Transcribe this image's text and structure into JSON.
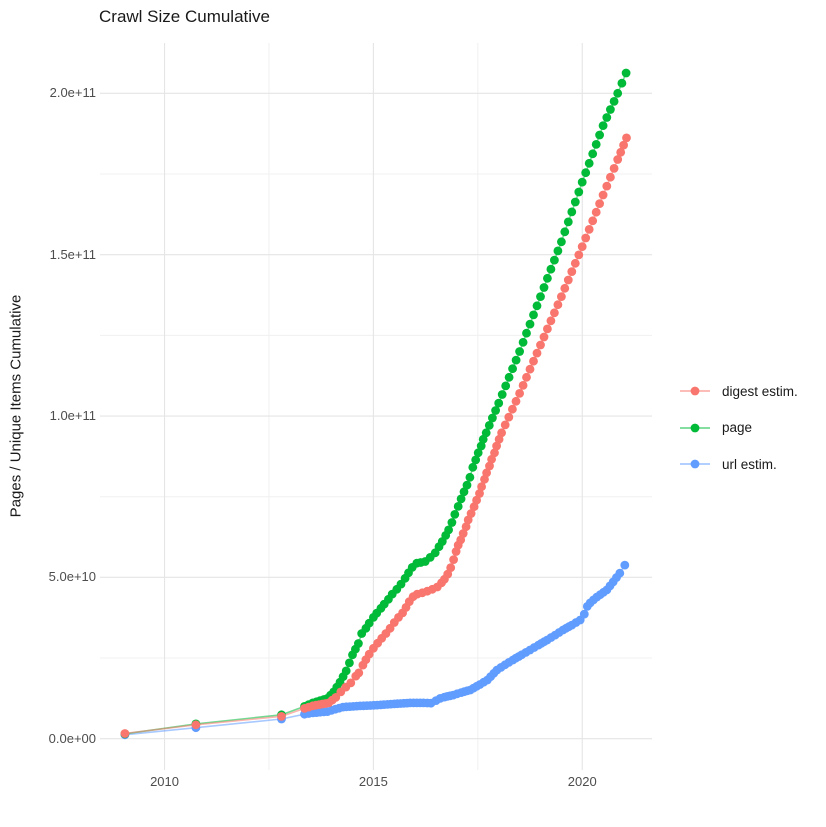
{
  "chart_data": {
    "type": "line",
    "title": "Crawl Size Cumulative",
    "ylabel": "Pages / Unique Items Cumulative",
    "xlabel": "",
    "value_unit": "1e9 (values below are billions of pages / unique items)",
    "x_ticks": [
      {
        "v": 2010,
        "label": "2010"
      },
      {
        "v": 2015,
        "label": "2015"
      },
      {
        "v": 2020,
        "label": "2020"
      }
    ],
    "y_ticks": [
      {
        "v": 0,
        "label": "0.0e+00"
      },
      {
        "v": 50,
        "label": "5.0e+10"
      },
      {
        "v": 100,
        "label": "1.0e+11"
      },
      {
        "v": 150,
        "label": "1.5e+11"
      },
      {
        "v": 200,
        "label": "2.0e+11"
      }
    ],
    "x_minor": [
      2012.5,
      2017.5
    ],
    "y_minor": [
      25,
      75,
      125,
      175
    ],
    "xlim": [
      2008.455,
      2021.67
    ],
    "ylim": [
      -9.7,
      215.6
    ],
    "grid": true,
    "legend_position": "right",
    "grid_major_color": "#e5e5e5",
    "grid_minor_color": "#f0f0f0",
    "dot_spacing_years": 0.08333,
    "interpolate_from_year": 2013.3,
    "line_opacity": 0.55,
    "dot_radius": 4.4,
    "series": [
      {
        "name": "digest estim.",
        "color": "#F8766D",
        "points": [
          [
            2009.05,
            1.6
          ],
          [
            2010.75,
            4.3
          ],
          [
            2012.8,
            6.9
          ],
          [
            2013.35,
            9.4
          ],
          [
            2013.55,
            10.2
          ],
          [
            2013.93,
            11.1
          ],
          [
            2014.1,
            12.8
          ],
          [
            2014.22,
            14.5
          ],
          [
            2014.34,
            16
          ],
          [
            2014.46,
            17.3
          ],
          [
            2014.58,
            19.4
          ],
          [
            2014.65,
            20.4
          ],
          [
            2014.75,
            22.8
          ],
          [
            2014.82,
            24.5
          ],
          [
            2014.9,
            26.2
          ],
          [
            2015,
            28
          ],
          [
            2015.1,
            29.6
          ],
          [
            2015.2,
            31.1
          ],
          [
            2015.3,
            32.6
          ],
          [
            2015.4,
            34.2
          ],
          [
            2015.5,
            36
          ],
          [
            2015.6,
            37.6
          ],
          [
            2015.7,
            39
          ],
          [
            2015.78,
            40.7
          ],
          [
            2015.86,
            42.5
          ],
          [
            2015.95,
            44
          ],
          [
            2016.05,
            44.8
          ],
          [
            2016.17,
            45.2
          ],
          [
            2016.29,
            45.7
          ],
          [
            2016.41,
            46.3
          ],
          [
            2016.53,
            47
          ],
          [
            2016.63,
            48.3
          ],
          [
            2016.7,
            49.4
          ],
          [
            2016.78,
            51
          ],
          [
            2016.85,
            53
          ],
          [
            2016.92,
            55.5
          ],
          [
            2016.98,
            58
          ],
          [
            2017.03,
            60
          ],
          [
            2017.09,
            61.6
          ],
          [
            2017.15,
            63.6
          ],
          [
            2017.22,
            65.7
          ],
          [
            2017.27,
            67.8
          ],
          [
            2017.34,
            69.8
          ],
          [
            2017.41,
            71.9
          ],
          [
            2017.47,
            73.9
          ],
          [
            2017.54,
            76
          ],
          [
            2017.59,
            78.1
          ],
          [
            2017.66,
            80.4
          ],
          [
            2017.71,
            82.4
          ],
          [
            2017.78,
            84.5
          ],
          [
            2017.83,
            86.6
          ],
          [
            2017.9,
            88.6
          ],
          [
            2017.95,
            90.7
          ],
          [
            2018.01,
            92.8
          ],
          [
            2018.07,
            94.8
          ],
          [
            2018.5,
            107
          ],
          [
            2019,
            122
          ],
          [
            2019.5,
            137
          ],
          [
            2020,
            152.5
          ],
          [
            2020.5,
            168.5
          ],
          [
            2020.85,
            179.5
          ],
          [
            2021.06,
            186.2
          ]
        ]
      },
      {
        "name": "page",
        "color": "#00BA38",
        "points": [
          [
            2009.05,
            1.5
          ],
          [
            2010.75,
            4.6
          ],
          [
            2012.8,
            7.4
          ],
          [
            2013.35,
            10
          ],
          [
            2013.55,
            11.1
          ],
          [
            2013.9,
            12.5
          ],
          [
            2014.05,
            14.5
          ],
          [
            2014.2,
            17.5
          ],
          [
            2014.35,
            21
          ],
          [
            2014.5,
            26
          ],
          [
            2014.64,
            29.5
          ],
          [
            2014.72,
            32.6
          ],
          [
            2014.82,
            34.2
          ],
          [
            2014.9,
            35.8
          ],
          [
            2015,
            37.6
          ],
          [
            2015.08,
            38.9
          ],
          [
            2015.18,
            40.4
          ],
          [
            2015.26,
            41.7
          ],
          [
            2015.36,
            43.2
          ],
          [
            2015.45,
            44.8
          ],
          [
            2015.56,
            46.3
          ],
          [
            2015.66,
            47.9
          ],
          [
            2015.76,
            49.7
          ],
          [
            2015.84,
            51.4
          ],
          [
            2015.93,
            53.1
          ],
          [
            2016.04,
            54.4
          ],
          [
            2016.13,
            54.6
          ],
          [
            2016.24,
            54.9
          ],
          [
            2016.36,
            56.2
          ],
          [
            2016.48,
            57.6
          ],
          [
            2016.57,
            59.5
          ],
          [
            2016.65,
            61.1
          ],
          [
            2016.73,
            63
          ],
          [
            2016.8,
            64.7
          ],
          [
            2016.88,
            67
          ],
          [
            2016.95,
            69.5
          ],
          [
            2017.03,
            72
          ],
          [
            2017.1,
            74.3
          ],
          [
            2017.17,
            76.5
          ],
          [
            2017.24,
            78.6
          ],
          [
            2017.31,
            81
          ],
          [
            2017.38,
            84.1
          ],
          [
            2017.45,
            86.4
          ],
          [
            2017.51,
            88.6
          ],
          [
            2017.58,
            90.7
          ],
          [
            2017.63,
            92.8
          ],
          [
            2017.7,
            94.8
          ],
          [
            2018,
            104
          ],
          [
            2018.5,
            120
          ],
          [
            2019,
            137
          ],
          [
            2019.5,
            154
          ],
          [
            2020,
            172.5
          ],
          [
            2020.5,
            190
          ],
          [
            2020.85,
            200
          ],
          [
            2021.05,
            206.3
          ]
        ]
      },
      {
        "name": "url estim.",
        "color": "#619CFF",
        "points": [
          [
            2009.05,
            1.2
          ],
          [
            2010.75,
            3.4
          ],
          [
            2012.8,
            6.1
          ],
          [
            2013.35,
            7.6
          ],
          [
            2013.55,
            8
          ],
          [
            2013.9,
            8.4
          ],
          [
            2014,
            8.8
          ],
          [
            2014.27,
            9.8
          ],
          [
            2014.6,
            10.1
          ],
          [
            2015.09,
            10.4
          ],
          [
            2015.5,
            10.8
          ],
          [
            2015.88,
            11.1
          ],
          [
            2016.2,
            11.1
          ],
          [
            2016.38,
            11
          ],
          [
            2016.5,
            11.8
          ],
          [
            2016.6,
            12.5
          ],
          [
            2016.7,
            12.9
          ],
          [
            2016.91,
            13.5
          ],
          [
            2017.1,
            14.3
          ],
          [
            2017.32,
            15.1
          ],
          [
            2017.55,
            16.8
          ],
          [
            2017.73,
            18.2
          ],
          [
            2017.96,
            21.3
          ],
          [
            2018.15,
            22.9
          ],
          [
            2018.34,
            24.4
          ],
          [
            2018.55,
            26
          ],
          [
            2018.75,
            27.5
          ],
          [
            2018.95,
            29
          ],
          [
            2019.16,
            30.6
          ],
          [
            2019.35,
            32.1
          ],
          [
            2019.54,
            33.7
          ],
          [
            2019.75,
            35.2
          ],
          [
            2019.95,
            36.8
          ],
          [
            2020.05,
            38.6
          ],
          [
            2020.12,
            41
          ],
          [
            2020.19,
            42.1
          ],
          [
            2020.35,
            43.9
          ],
          [
            2020.59,
            46.1
          ],
          [
            2020.74,
            48.6
          ],
          [
            2020.9,
            51.3
          ],
          [
            2021.02,
            53.8
          ]
        ]
      }
    ]
  }
}
